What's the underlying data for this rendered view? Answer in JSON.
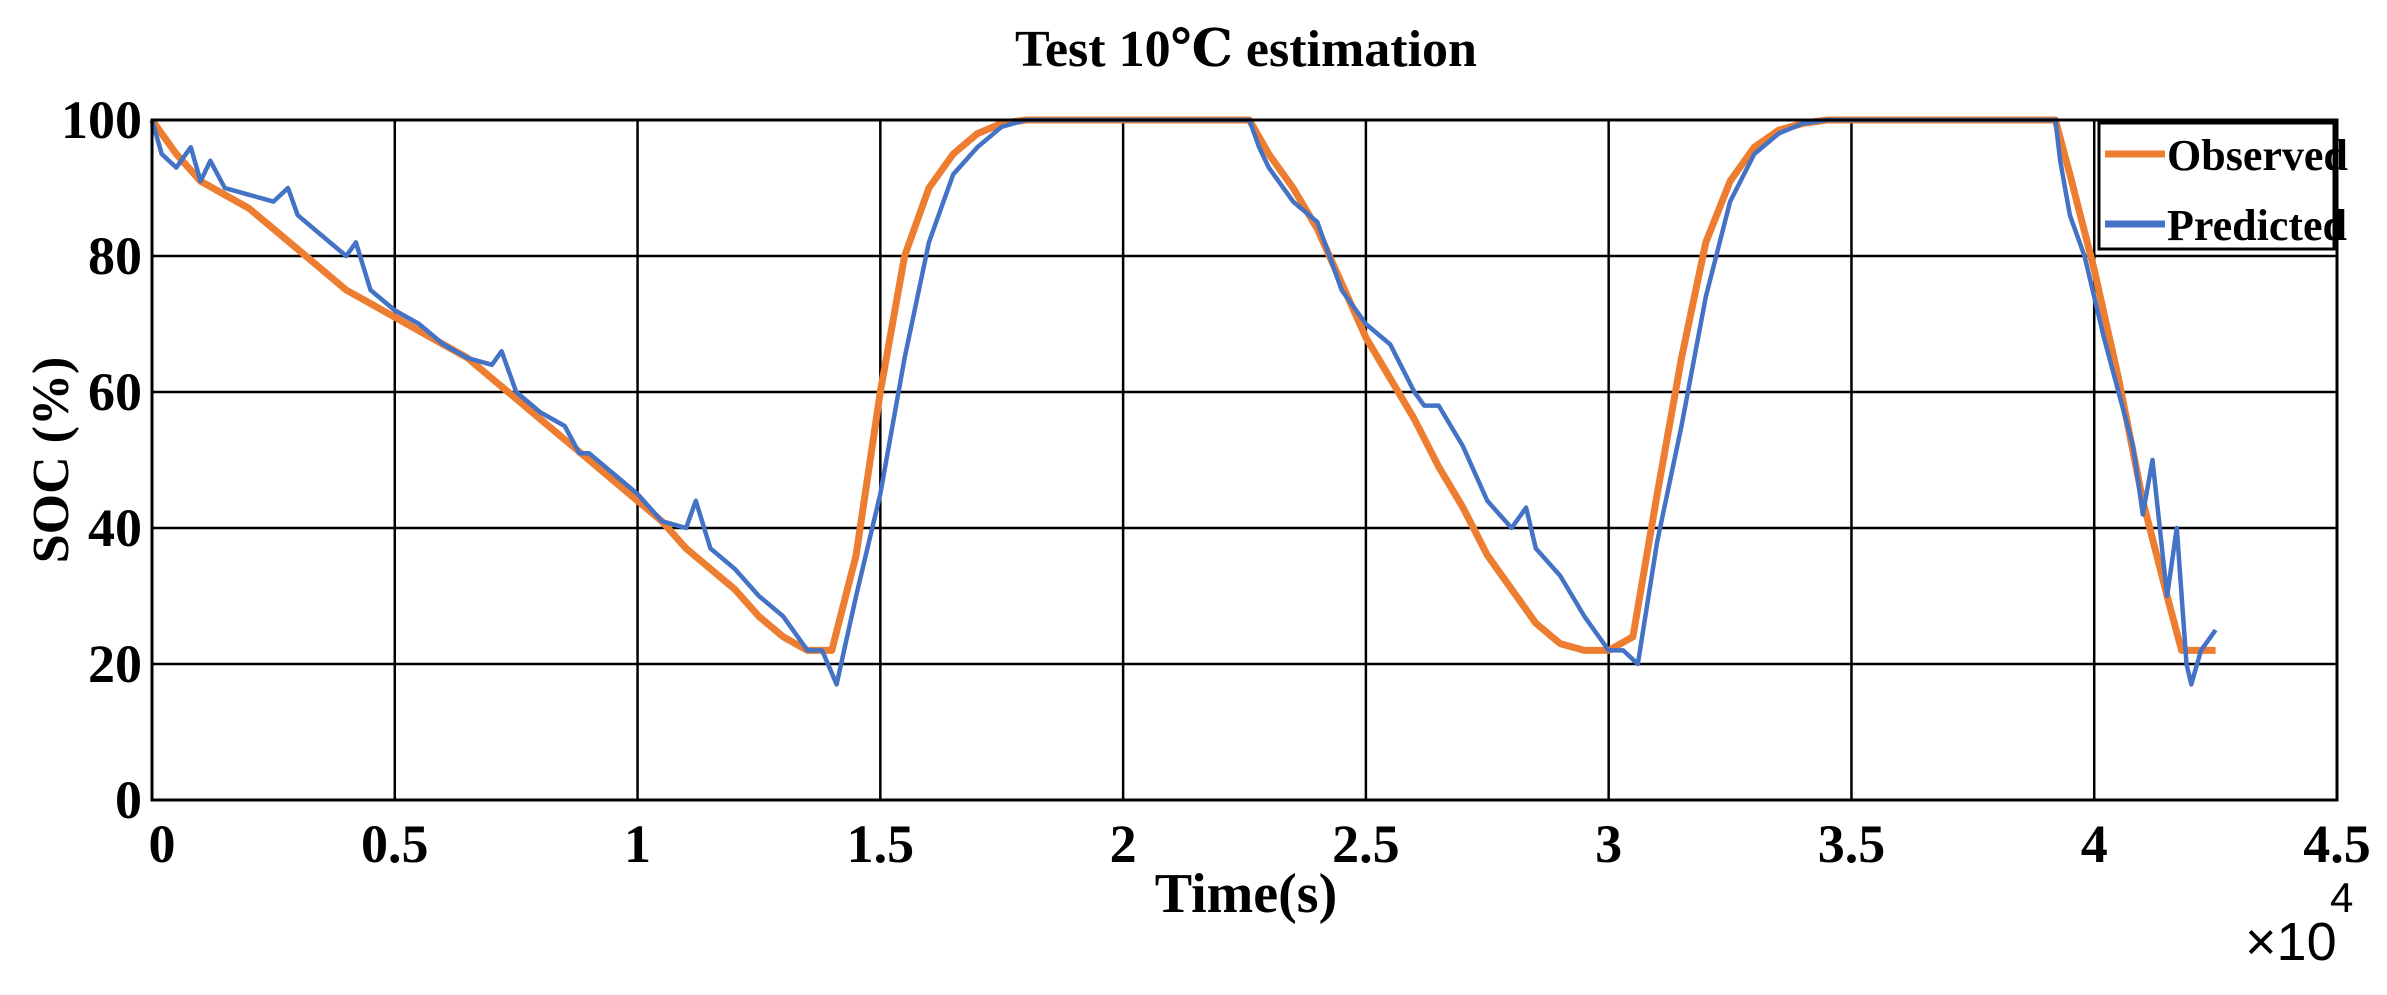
{
  "chart_data": {
    "type": "line",
    "title": "Test 10℃ estimation",
    "xlabel": "Time(s)",
    "ylabel": "SOC (%)",
    "x_multiplier_label": "×10",
    "x_multiplier_exponent": "4",
    "xlim": [
      0,
      4.5
    ],
    "ylim": [
      0,
      100
    ],
    "xticks": [
      0,
      0.5,
      1,
      1.5,
      2,
      2.5,
      3,
      3.5,
      4,
      4.5
    ],
    "xtick_labels": [
      "0",
      "0.5",
      "1",
      "1.5",
      "2",
      "2.5",
      "3",
      "3.5",
      "4",
      "4.5"
    ],
    "yticks": [
      0,
      20,
      40,
      60,
      80,
      100
    ],
    "ytick_labels": [
      "0",
      "20",
      "40",
      "60",
      "80",
      "100"
    ],
    "grid": true,
    "legend_position": "top-right",
    "series": [
      {
        "name": "Observed",
        "color": "#ED7D31",
        "x": [
          0,
          0.05,
          0.1,
          0.15,
          0.2,
          0.25,
          0.3,
          0.35,
          0.4,
          0.45,
          0.5,
          0.55,
          0.6,
          0.65,
          0.7,
          0.75,
          0.8,
          0.85,
          0.9,
          0.95,
          1.0,
          1.05,
          1.1,
          1.15,
          1.2,
          1.25,
          1.3,
          1.35,
          1.4,
          1.45,
          1.5,
          1.55,
          1.6,
          1.65,
          1.7,
          1.75,
          1.8,
          1.85,
          1.9,
          2.0,
          2.1,
          2.26,
          2.3,
          2.35,
          2.4,
          2.45,
          2.5,
          2.55,
          2.6,
          2.65,
          2.7,
          2.75,
          2.8,
          2.85,
          2.9,
          2.95,
          3.0,
          3.05,
          3.1,
          3.15,
          3.2,
          3.25,
          3.3,
          3.35,
          3.4,
          3.45,
          3.5,
          3.6,
          3.7,
          3.8,
          3.92,
          3.95,
          4.0,
          4.05,
          4.1,
          4.15,
          4.18,
          4.21,
          4.25
        ],
        "y": [
          100,
          95,
          91,
          89,
          87,
          84,
          81,
          78,
          75,
          73,
          71,
          69,
          67,
          65,
          62,
          59,
          56,
          53,
          50,
          47,
          44,
          41,
          37,
          34,
          31,
          27,
          24,
          22,
          22,
          36,
          60,
          80,
          90,
          95,
          98,
          99.5,
          100,
          100,
          100,
          100,
          100,
          100,
          95,
          90,
          84,
          76,
          68,
          62,
          56,
          49,
          43,
          36,
          31,
          26,
          23,
          22,
          22,
          24,
          45,
          65,
          82,
          91,
          96,
          98.5,
          99.5,
          100,
          100,
          100,
          100,
          100,
          100,
          92,
          78,
          62,
          44,
          30,
          22,
          22,
          22
        ]
      },
      {
        "name": "Predicted",
        "color": "#4472C4",
        "x": [
          0,
          0.02,
          0.05,
          0.08,
          0.1,
          0.12,
          0.15,
          0.2,
          0.25,
          0.28,
          0.3,
          0.35,
          0.4,
          0.42,
          0.45,
          0.5,
          0.55,
          0.6,
          0.65,
          0.7,
          0.72,
          0.75,
          0.8,
          0.85,
          0.88,
          0.9,
          0.95,
          1.0,
          1.05,
          1.1,
          1.12,
          1.15,
          1.2,
          1.25,
          1.3,
          1.35,
          1.38,
          1.41,
          1.45,
          1.5,
          1.55,
          1.6,
          1.65,
          1.7,
          1.75,
          1.8,
          1.85,
          1.9,
          2.0,
          2.1,
          2.26,
          2.28,
          2.3,
          2.35,
          2.4,
          2.45,
          2.5,
          2.55,
          2.6,
          2.62,
          2.65,
          2.7,
          2.75,
          2.8,
          2.83,
          2.85,
          2.9,
          2.95,
          3.0,
          3.03,
          3.06,
          3.1,
          3.15,
          3.2,
          3.25,
          3.3,
          3.35,
          3.4,
          3.45,
          3.5,
          3.6,
          3.7,
          3.8,
          3.92,
          3.93,
          3.95,
          3.98,
          4.0,
          4.02,
          4.05,
          4.08,
          4.1,
          4.12,
          4.15,
          4.17,
          4.19,
          4.2,
          4.22,
          4.25
        ],
        "y": [
          100,
          95,
          93,
          96,
          91,
          94,
          90,
          89,
          88,
          90,
          86,
          83,
          80,
          82,
          75,
          72,
          70,
          67,
          65,
          64,
          66,
          60,
          57,
          55,
          51,
          51,
          48,
          45,
          41,
          40,
          44,
          37,
          34,
          30,
          27,
          22,
          22,
          17,
          30,
          45,
          65,
          82,
          92,
          96,
          99,
          100,
          100,
          100,
          100,
          100,
          100,
          96,
          93,
          88,
          85,
          75,
          70,
          67,
          60,
          58,
          58,
          52,
          44,
          40,
          43,
          37,
          33,
          27,
          22,
          22,
          20,
          38,
          55,
          74,
          88,
          95,
          98,
          99.5,
          100,
          100,
          100,
          100,
          100,
          100,
          94,
          86,
          80,
          74,
          68,
          60,
          52,
          42,
          50,
          30,
          40,
          20,
          17,
          22,
          25
        ]
      }
    ]
  }
}
